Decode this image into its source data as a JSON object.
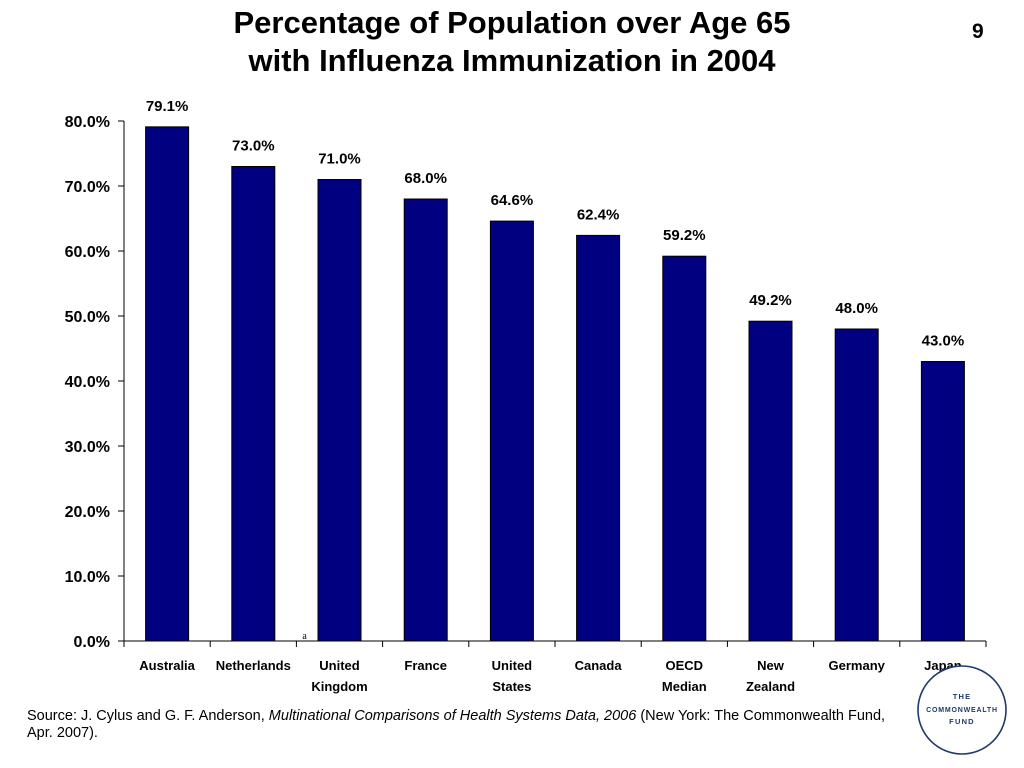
{
  "slide": {
    "title_line1": "Percentage of Population over Age 65",
    "title_line2": "with Influenza Immunization in 2004",
    "number": "9"
  },
  "source": {
    "prefix": "Source: J. Cylus and G. F. Anderson, ",
    "italic": "Multinational Comparisons of Health Systems Data, 2006",
    "suffix": " (New York: The Commonwealth Fund, Apr. 2007)."
  },
  "logo": {
    "line1": "THE",
    "line2": "COMMONWEALTH",
    "line3": "FUND"
  },
  "chart_data": {
    "type": "bar",
    "title": "Percentage of Population over Age 65 with Influenza Immunization in 2004",
    "xlabel": "",
    "ylabel": "",
    "categories": [
      [
        "Australia"
      ],
      [
        "Netherlands"
      ],
      [
        "United",
        "Kingdom"
      ],
      [
        "France"
      ],
      [
        "United",
        "States"
      ],
      [
        "Canada"
      ],
      [
        "OECD",
        "Median"
      ],
      [
        "New",
        "Zealand"
      ],
      [
        "Germany"
      ],
      [
        "Japan"
      ]
    ],
    "values": [
      79.1,
      73.0,
      71.0,
      68.0,
      64.6,
      62.4,
      59.2,
      49.2,
      48.0,
      43.0
    ],
    "data_labels": [
      "79.1%",
      "73.0%",
      "71.0%",
      "68.0%",
      "64.6%",
      "62.4%",
      "59.2%",
      "49.2%",
      "48.0%",
      "43.0%"
    ],
    "ylim": [
      0,
      80
    ],
    "yticks": [
      0,
      10,
      20,
      30,
      40,
      50,
      60,
      70,
      80
    ],
    "ytick_labels": [
      "0.0%",
      "10.0%",
      "20.0%",
      "30.0%",
      "40.0%",
      "50.0%",
      "60.0%",
      "70.0%",
      "80.0%"
    ],
    "footnote_marker": "a",
    "bar_color": "#000080",
    "grid": false
  }
}
